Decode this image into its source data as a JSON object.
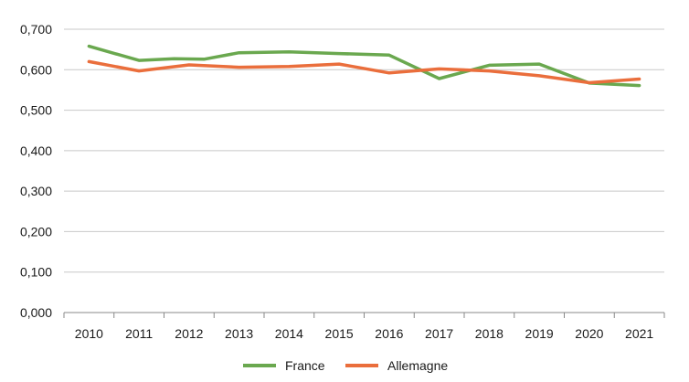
{
  "chart_data": {
    "type": "line",
    "x": [
      "2010",
      "2011",
      "2012",
      "2013",
      "2014",
      "2015",
      "2016",
      "2017",
      "2018",
      "2019",
      "2020",
      "2021"
    ],
    "y_ticks": [
      "0,000",
      "0,100",
      "0,200",
      "0,300",
      "0,400",
      "0,500",
      "0,600",
      "0,700"
    ],
    "ylim": [
      0,
      0.7
    ],
    "grid": "horizontal",
    "legend_position": "bottom",
    "series": [
      {
        "name": "France",
        "color": "#6aa84f",
        "points": [
          {
            "x": 2010.0,
            "y": 0.658
          },
          {
            "x": 2011.0,
            "y": 0.623
          },
          {
            "x": 2011.7,
            "y": 0.627
          },
          {
            "x": 2012.3,
            "y": 0.626
          },
          {
            "x": 2013.0,
            "y": 0.642
          },
          {
            "x": 2014.0,
            "y": 0.644
          },
          {
            "x": 2015.0,
            "y": 0.64
          },
          {
            "x": 2016.0,
            "y": 0.636
          },
          {
            "x": 2017.0,
            "y": 0.578
          },
          {
            "x": 2018.0,
            "y": 0.611
          },
          {
            "x": 2019.0,
            "y": 0.614
          },
          {
            "x": 2020.0,
            "y": 0.567
          },
          {
            "x": 2021.0,
            "y": 0.561
          }
        ]
      },
      {
        "name": "Allemagne",
        "color": "#ea6e3c",
        "points": [
          {
            "x": 2010.0,
            "y": 0.62
          },
          {
            "x": 2011.0,
            "y": 0.597
          },
          {
            "x": 2012.0,
            "y": 0.612
          },
          {
            "x": 2013.0,
            "y": 0.606
          },
          {
            "x": 2014.0,
            "y": 0.608
          },
          {
            "x": 2015.0,
            "y": 0.614
          },
          {
            "x": 2016.0,
            "y": 0.592
          },
          {
            "x": 2017.0,
            "y": 0.602
          },
          {
            "x": 2018.0,
            "y": 0.597
          },
          {
            "x": 2019.0,
            "y": 0.585
          },
          {
            "x": 2020.0,
            "y": 0.568
          },
          {
            "x": 2021.0,
            "y": 0.577
          }
        ]
      }
    ]
  }
}
